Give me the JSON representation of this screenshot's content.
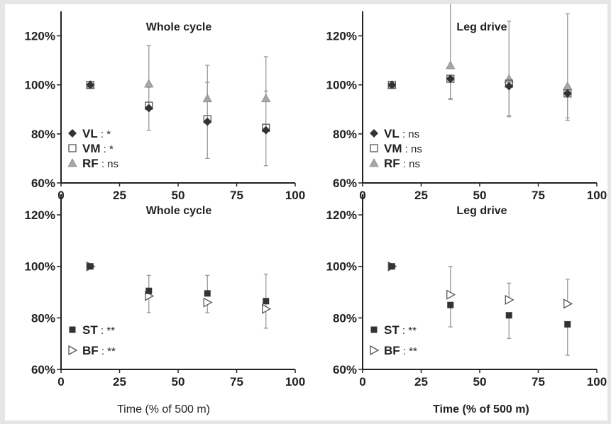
{
  "figure": {
    "x_title_left": "Time (% of 500 m)",
    "x_title_right": "Time (% of 500 m)"
  },
  "colors": {
    "dark_marker": "#333333",
    "open_marker_stroke": "#555555",
    "gray_triangle": "#a6a6a6",
    "error_bar": "#999999",
    "axis": "#222222"
  },
  "chart_data": [
    {
      "type": "scatter",
      "title": "Whole cycle",
      "xlabel": "",
      "ylabel": "",
      "xlim": [
        0,
        100
      ],
      "ylim": [
        60,
        130
      ],
      "xticks": [
        "0",
        "25",
        "50",
        "75",
        "100"
      ],
      "yticks": [
        "60%",
        "80%",
        "100%",
        "120%"
      ],
      "grid": false,
      "legend_position": "bottom-left",
      "series": [
        {
          "name": "VL",
          "legend_sig": ": *",
          "marker": "diamond-filled",
          "x": [
            12.5,
            37.5,
            62.5,
            87.5
          ],
          "y": [
            100,
            90.5,
            85,
            81.5
          ],
          "err_low": [
            null,
            81.5,
            70,
            67
          ],
          "err_high": [
            null,
            99,
            101,
            97.5
          ]
        },
        {
          "name": "VM",
          "legend_sig": ": *",
          "marker": "square-open",
          "x": [
            12.5,
            37.5,
            62.5,
            87.5
          ],
          "y": [
            100,
            91.5,
            86,
            82.5
          ],
          "err_low": [
            null,
            null,
            null,
            null
          ],
          "err_high": [
            null,
            null,
            null,
            null
          ]
        },
        {
          "name": "RF",
          "legend_sig": ": ns",
          "marker": "triangle-filled-gray",
          "x": [
            12.5,
            37.5,
            62.5,
            87.5
          ],
          "y": [
            100,
            100.5,
            94.5,
            94.5
          ],
          "err_low": [
            null,
            null,
            null,
            null
          ],
          "err_high": [
            null,
            116,
            108,
            111.5
          ]
        }
      ]
    },
    {
      "type": "scatter",
      "title": "Leg drive",
      "xlabel": "",
      "ylabel": "",
      "xlim": [
        0,
        100
      ],
      "ylim": [
        60,
        130
      ],
      "xticks": [
        "0",
        "25",
        "50",
        "75",
        "100"
      ],
      "yticks": [
        "60%",
        "80%",
        "100%",
        "120%"
      ],
      "grid": false,
      "legend_position": "bottom-left",
      "series": [
        {
          "name": "VL",
          "legend_sig": ": ns",
          "marker": "diamond-filled",
          "x": [
            12.5,
            37.5,
            62.5,
            87.5
          ],
          "y": [
            100,
            102.5,
            99.5,
            96.5
          ],
          "err_low": [
            null,
            94.5,
            87.5,
            86.5
          ],
          "err_high": [
            null,
            null,
            null,
            null
          ]
        },
        {
          "name": "VM",
          "legend_sig": ": ns",
          "marker": "square-open",
          "x": [
            12.5,
            37.5,
            62.5,
            87.5
          ],
          "y": [
            100,
            102.5,
            100.5,
            96.5
          ],
          "err_low": [
            null,
            94,
            87,
            85.5
          ],
          "err_high": [
            null,
            null,
            null,
            null
          ]
        },
        {
          "name": "RF",
          "legend_sig": ": ns",
          "marker": "triangle-filled-gray",
          "x": [
            12.5,
            37.5,
            62.5,
            87.5
          ],
          "y": [
            100,
            108,
            102.5,
            99.5
          ],
          "err_low": [
            null,
            null,
            null,
            null
          ],
          "err_high": [
            null,
            135,
            126,
            129
          ]
        }
      ]
    },
    {
      "type": "scatter",
      "title": "Whole cycle",
      "xlabel": "Time (% of 500 m)",
      "ylabel": "",
      "xlim": [
        0,
        100
      ],
      "ylim": [
        60,
        128
      ],
      "xticks": [
        "0",
        "25",
        "50",
        "75",
        "100"
      ],
      "yticks": [
        "60%",
        "80%",
        "100%",
        "120%"
      ],
      "grid": false,
      "legend_position": "bottom-left",
      "series": [
        {
          "name": "ST",
          "legend_sig": ": **",
          "marker": "square-filled",
          "x": [
            12.5,
            37.5,
            62.5,
            87.5
          ],
          "y": [
            100,
            90.5,
            89.5,
            86.5
          ],
          "err_low": [
            null,
            null,
            null,
            76
          ],
          "err_high": [
            null,
            96.5,
            96.5,
            97
          ]
        },
        {
          "name": "BF",
          "legend_sig": ": **",
          "marker": "triangle-right-open",
          "x": [
            12.5,
            37.5,
            62.5,
            87.5
          ],
          "y": [
            100,
            88.5,
            86,
            83.5
          ],
          "err_low": [
            null,
            82,
            82,
            null
          ],
          "err_high": [
            null,
            null,
            null,
            null
          ]
        }
      ]
    },
    {
      "type": "scatter",
      "title": "Leg drive",
      "xlabel": "Time (% of 500 m)",
      "ylabel": "",
      "xlim": [
        0,
        100
      ],
      "ylim": [
        60,
        128
      ],
      "xticks": [
        "0",
        "25",
        "50",
        "75",
        "100"
      ],
      "yticks": [
        "60%",
        "80%",
        "100%",
        "120%"
      ],
      "grid": false,
      "legend_position": "bottom-left",
      "series": [
        {
          "name": "ST",
          "legend_sig": ": **",
          "marker": "square-filled",
          "x": [
            12.5,
            37.5,
            62.5,
            87.5
          ],
          "y": [
            100,
            85,
            81,
            77.5
          ],
          "err_low": [
            null,
            76.5,
            72,
            65.5
          ],
          "err_high": [
            null,
            null,
            null,
            null
          ]
        },
        {
          "name": "BF",
          "legend_sig": ": **",
          "marker": "triangle-right-open",
          "x": [
            12.5,
            37.5,
            62.5,
            87.5
          ],
          "y": [
            100,
            89,
            87,
            85.5
          ],
          "err_low": [
            null,
            null,
            null,
            null
          ],
          "err_high": [
            null,
            100,
            93.5,
            95
          ]
        }
      ]
    }
  ]
}
